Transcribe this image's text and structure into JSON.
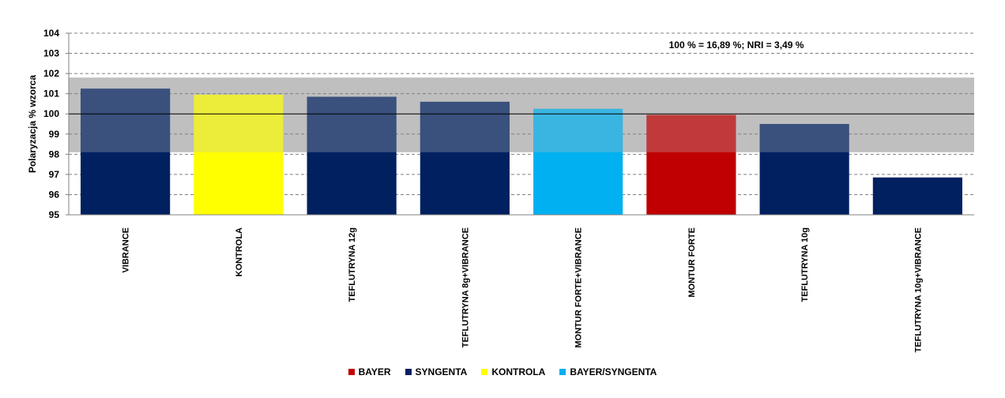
{
  "chart_data": {
    "type": "bar",
    "title": "",
    "annotation": "100 % = 16,89 %; NRI = 3,49 %",
    "xlabel": "",
    "ylabel": "Polaryzacja % wzorca",
    "ylim": [
      95,
      104
    ],
    "yticks": [
      95,
      96,
      97,
      98,
      99,
      100,
      101,
      102,
      103,
      104
    ],
    "reference_line": 100,
    "nri_band": [
      98.1,
      101.8
    ],
    "grid": true,
    "legend_position": "bottom",
    "categories": [
      "VIBRANCE",
      "KONTROLA",
      "TEFLUTRYNA 12g",
      "TEFLUTRYNA 8g+VIBRANCE",
      "MONTUR FORTE+VIBRANCE",
      "MONTUR FORTE",
      "TEFLUTRYNA 10g",
      "TEFLUTRYNA 10g+VIBRANCE"
    ],
    "values": [
      101.25,
      100.95,
      100.85,
      100.6,
      100.25,
      99.95,
      99.5,
      96.85
    ],
    "groups": [
      "SYNGENTA",
      "KONTROLA",
      "SYNGENTA",
      "SYNGENTA",
      "BAYER/SYNGENTA",
      "BAYER",
      "SYNGENTA",
      "SYNGENTA"
    ],
    "legend": [
      {
        "name": "BAYER",
        "color": "#C00000"
      },
      {
        "name": "SYNGENTA",
        "color": "#002060"
      },
      {
        "name": "KONTROLA",
        "color": "#FFFF00"
      },
      {
        "name": "BAYER/SYNGENTA",
        "color": "#00B0F0"
      }
    ],
    "colors": {
      "band": "#BFBFBF",
      "grid": "#808080",
      "reference": "#000000"
    }
  }
}
